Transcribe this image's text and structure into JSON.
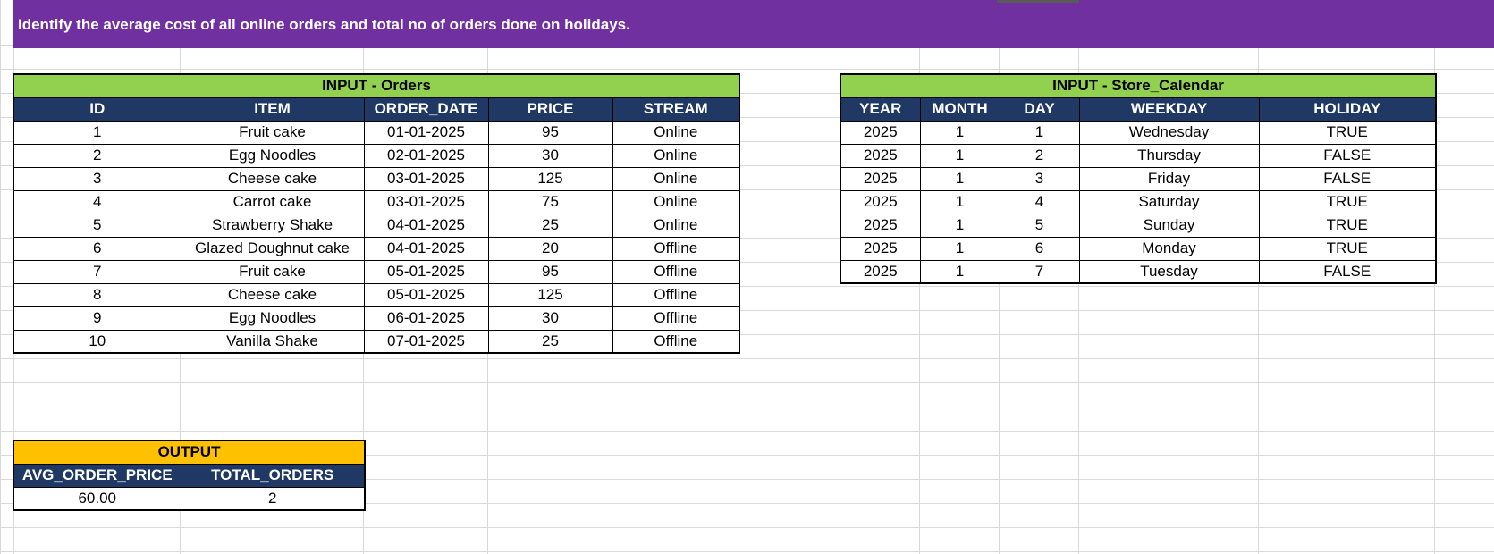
{
  "banner": {
    "text": "Identify the average cost of all online orders and total no of orders done on holidays."
  },
  "orders": {
    "caption": "INPUT - Orders",
    "columns": [
      "ID",
      "ITEM",
      "ORDER_DATE",
      "PRICE",
      "STREAM"
    ],
    "rows": [
      [
        "1",
        "Fruit cake",
        "01-01-2025",
        "95",
        "Online"
      ],
      [
        "2",
        "Egg Noodles",
        "02-01-2025",
        "30",
        "Online"
      ],
      [
        "3",
        "Cheese cake",
        "03-01-2025",
        "125",
        "Online"
      ],
      [
        "4",
        "Carrot cake",
        "03-01-2025",
        "75",
        "Online"
      ],
      [
        "5",
        "Strawberry Shake",
        "04-01-2025",
        "25",
        "Online"
      ],
      [
        "6",
        "Glazed Doughnut cake",
        "04-01-2025",
        "20",
        "Offline"
      ],
      [
        "7",
        "Fruit cake",
        "05-01-2025",
        "95",
        "Offline"
      ],
      [
        "8",
        "Cheese cake",
        "05-01-2025",
        "125",
        "Offline"
      ],
      [
        "9",
        "Egg Noodles",
        "06-01-2025",
        "30",
        "Offline"
      ],
      [
        "10",
        "Vanilla Shake",
        "07-01-2025",
        "25",
        "Offline"
      ]
    ]
  },
  "calendar": {
    "caption": "INPUT - Store_Calendar",
    "columns": [
      "YEAR",
      "MONTH",
      "DAY",
      "WEEKDAY",
      "HOLIDAY"
    ],
    "rows": [
      [
        "2025",
        "1",
        "1",
        "Wednesday",
        "TRUE"
      ],
      [
        "2025",
        "1",
        "2",
        "Thursday",
        "FALSE"
      ],
      [
        "2025",
        "1",
        "3",
        "Friday",
        "FALSE"
      ],
      [
        "2025",
        "1",
        "4",
        "Saturday",
        "TRUE"
      ],
      [
        "2025",
        "1",
        "5",
        "Sunday",
        "TRUE"
      ],
      [
        "2025",
        "1",
        "6",
        "Monday",
        "TRUE"
      ],
      [
        "2025",
        "1",
        "7",
        "Tuesday",
        "FALSE"
      ]
    ]
  },
  "output": {
    "caption": "OUTPUT",
    "columns": [
      "AVG_ORDER_PRICE",
      "TOTAL_ORDERS"
    ],
    "rows": [
      [
        "60.00",
        "2"
      ]
    ]
  },
  "colors": {
    "banner": "#7030a0",
    "caption_green": "#92d050",
    "caption_gold": "#ffc000",
    "header_navy": "#1f3864"
  }
}
